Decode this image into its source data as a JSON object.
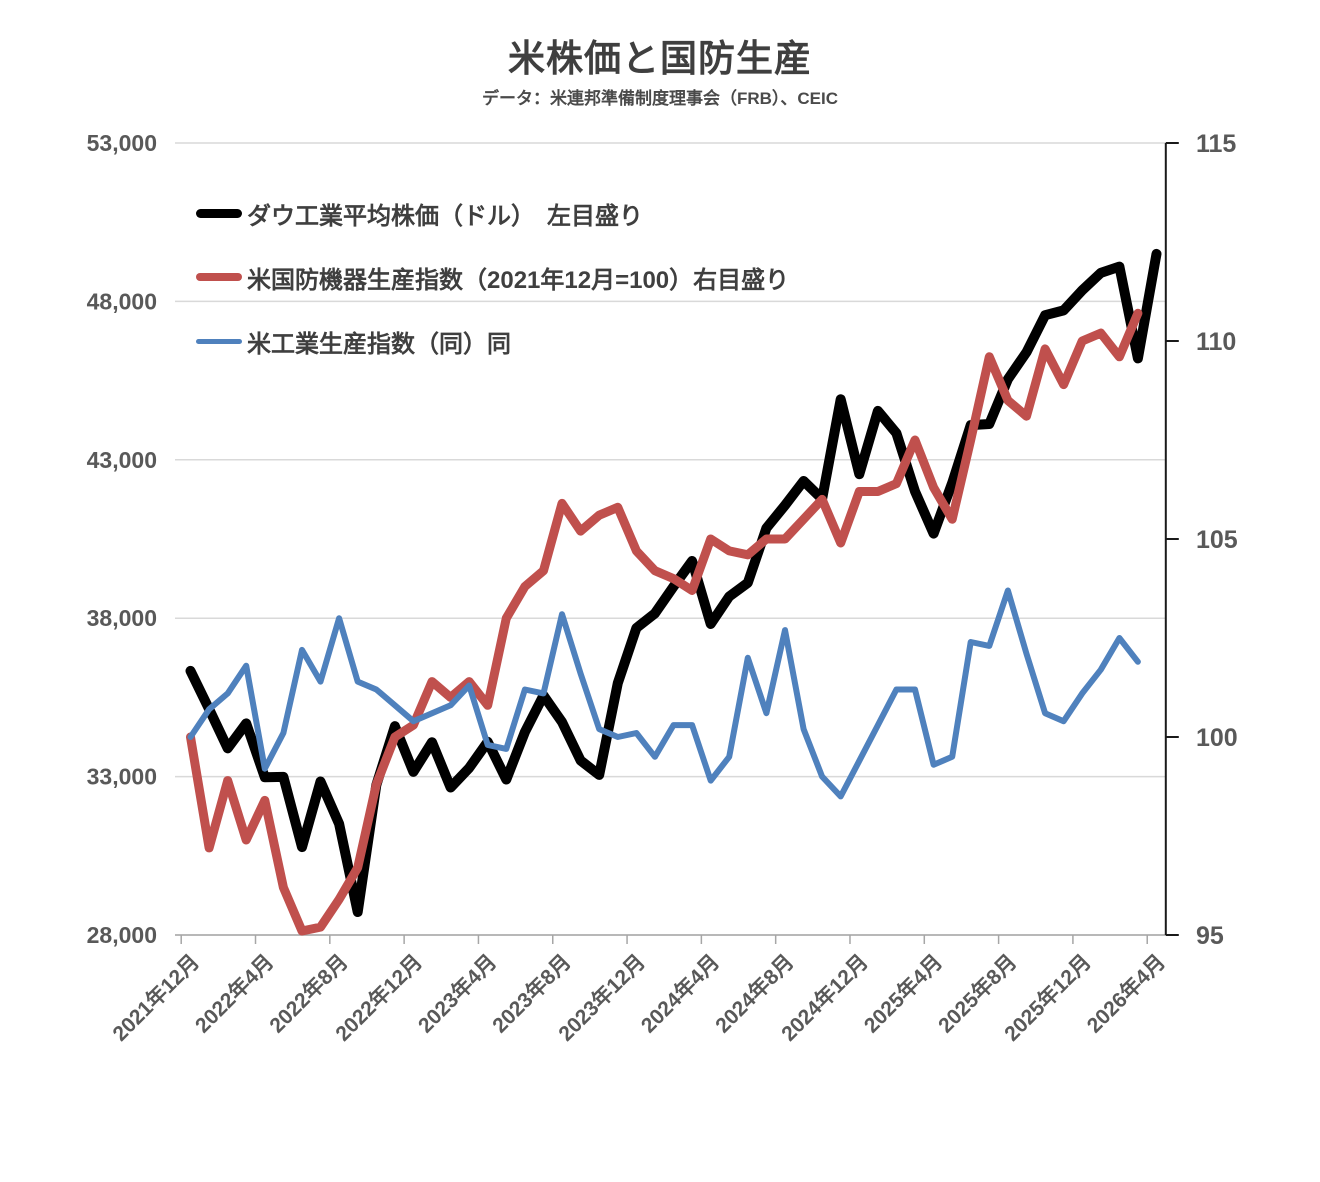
{
  "title": "米株価と国防生産",
  "subtitle": "データ：米連邦準備制度理事会（FRB）、CEIC",
  "colors": {
    "dow": "#000000",
    "defense": "#c0504d",
    "industrial": "#4f81bd",
    "grid": "#d9d9d9",
    "category_axis": "#a6a6a6",
    "value_axis": "#1a1a1a",
    "tick_text": "#595959",
    "title_text": "#3f3f3f"
  },
  "chart_data": {
    "type": "line",
    "title": "米株価と国防生産",
    "subtitle": "データ：米連邦準備制度理事会（FRB）、CEIC",
    "grid": "horizontal",
    "legend_position": "top-left-inside",
    "x_tick_labels": [
      "2021年12月",
      "2022年4月",
      "2022年8月",
      "2022年12月",
      "2023年4月",
      "2023年8月",
      "2023年12月",
      "2024年4月",
      "2024年8月",
      "2024年12月",
      "2025年4月",
      "2025年8月",
      "2025年12月",
      "2026年4月"
    ],
    "months": [
      "2021年12月",
      "2022年1月",
      "2022年2月",
      "2022年3月",
      "2022年4月",
      "2022年5月",
      "2022年6月",
      "2022年7月",
      "2022年8月",
      "2022年9月",
      "2022年10月",
      "2022年11月",
      "2022年12月",
      "2023年1月",
      "2023年2月",
      "2023年3月",
      "2023年4月",
      "2023年5月",
      "2023年6月",
      "2023年7月",
      "2023年8月",
      "2023年9月",
      "2023年10月",
      "2023年11月",
      "2023年12月",
      "2024年1月",
      "2024年2月",
      "2024年3月",
      "2024年4月",
      "2024年5月",
      "2024年6月",
      "2024年7月",
      "2024年8月",
      "2024年9月",
      "2024年10月",
      "2024年11月",
      "2024年12月",
      "2025年1月",
      "2025年2月",
      "2025年3月",
      "2025年4月",
      "2025年5月",
      "2025年6月",
      "2025年7月",
      "2025年8月",
      "2025年9月",
      "2025年10月",
      "2025年11月",
      "2025年12月",
      "2026年1月",
      "2026年2月",
      "2026年3月",
      "2026年4月"
    ],
    "left_axis": {
      "min": 28000,
      "max": 53000,
      "tick_step": 5000,
      "tick_labels": [
        "53,000",
        "48,000",
        "43,000",
        "38,000",
        "33,000",
        "28,000"
      ]
    },
    "right_axis": {
      "min": 95,
      "max": 115,
      "tick_step": 5,
      "tick_labels": [
        "115",
        "110",
        "105",
        "100",
        "95"
      ]
    },
    "series": [
      {
        "id": "dow",
        "name": "ダウ工業平均株価（ドル）　左目盛り",
        "axis": "left",
        "color": "#000000",
        "stroke_width": 10,
        "values": [
          36338,
          35132,
          33892,
          34678,
          32977,
          32990,
          30775,
          32845,
          31510,
          28726,
          32733,
          34590,
          33147,
          34086,
          32657,
          33274,
          34098,
          32908,
          34408,
          35560,
          34722,
          33508,
          33053,
          35951,
          37690,
          38150,
          38996,
          39807,
          37816,
          38686,
          39119,
          40843,
          41563,
          42330,
          41763,
          44911,
          42544,
          44545,
          43841,
          42002,
          40669,
          42270,
          44095,
          44131,
          45545,
          46398,
          47563,
          47716,
          48350,
          48900,
          49100,
          46200,
          49500
        ]
      },
      {
        "id": "defense",
        "name": "米国防機器生産指数（2021年12月=100）右目盛り",
        "axis": "right",
        "color": "#c0504d",
        "stroke_width": 9,
        "values": [
          100,
          97.2,
          98.9,
          97.4,
          98.4,
          96.2,
          95.1,
          95.2,
          95.9,
          96.7,
          98.8,
          100,
          100.3,
          101.4,
          101,
          101.4,
          100.8,
          103,
          103.8,
          104.2,
          105.9,
          105.2,
          105.6,
          105.8,
          104.7,
          104.2,
          104,
          103.7,
          105,
          104.7,
          104.6,
          105,
          105,
          105.5,
          106,
          104.9,
          106.2,
          106.2,
          106.4,
          107.5,
          106.3,
          105.5,
          107.5,
          109.6,
          108.5,
          108.1,
          109.8,
          108.9,
          110,
          110.2,
          109.6,
          110.7
        ]
      },
      {
        "id": "industrial",
        "name": "米工業生産指数（同）同",
        "axis": "right",
        "color": "#4f81bd",
        "stroke_width": 6,
        "values": [
          100,
          100.7,
          101.1,
          101.8,
          99.2,
          100.1,
          102.2,
          101.4,
          103,
          101.4,
          101.2,
          100.8,
          100.4,
          100.6,
          100.8,
          101.3,
          99.8,
          99.7,
          101.2,
          101.1,
          103.1,
          101.6,
          100.2,
          100,
          100.1,
          99.5,
          100.3,
          100.3,
          98.9,
          99.5,
          102,
          100.6,
          102.7,
          100.2,
          99,
          98.5,
          99.4,
          100.3,
          101.2,
          101.2,
          99.3,
          99.5,
          102.4,
          102.3,
          103.7,
          102.1,
          100.6,
          100.4,
          101.1,
          101.7,
          102.5,
          101.9
        ]
      }
    ]
  }
}
